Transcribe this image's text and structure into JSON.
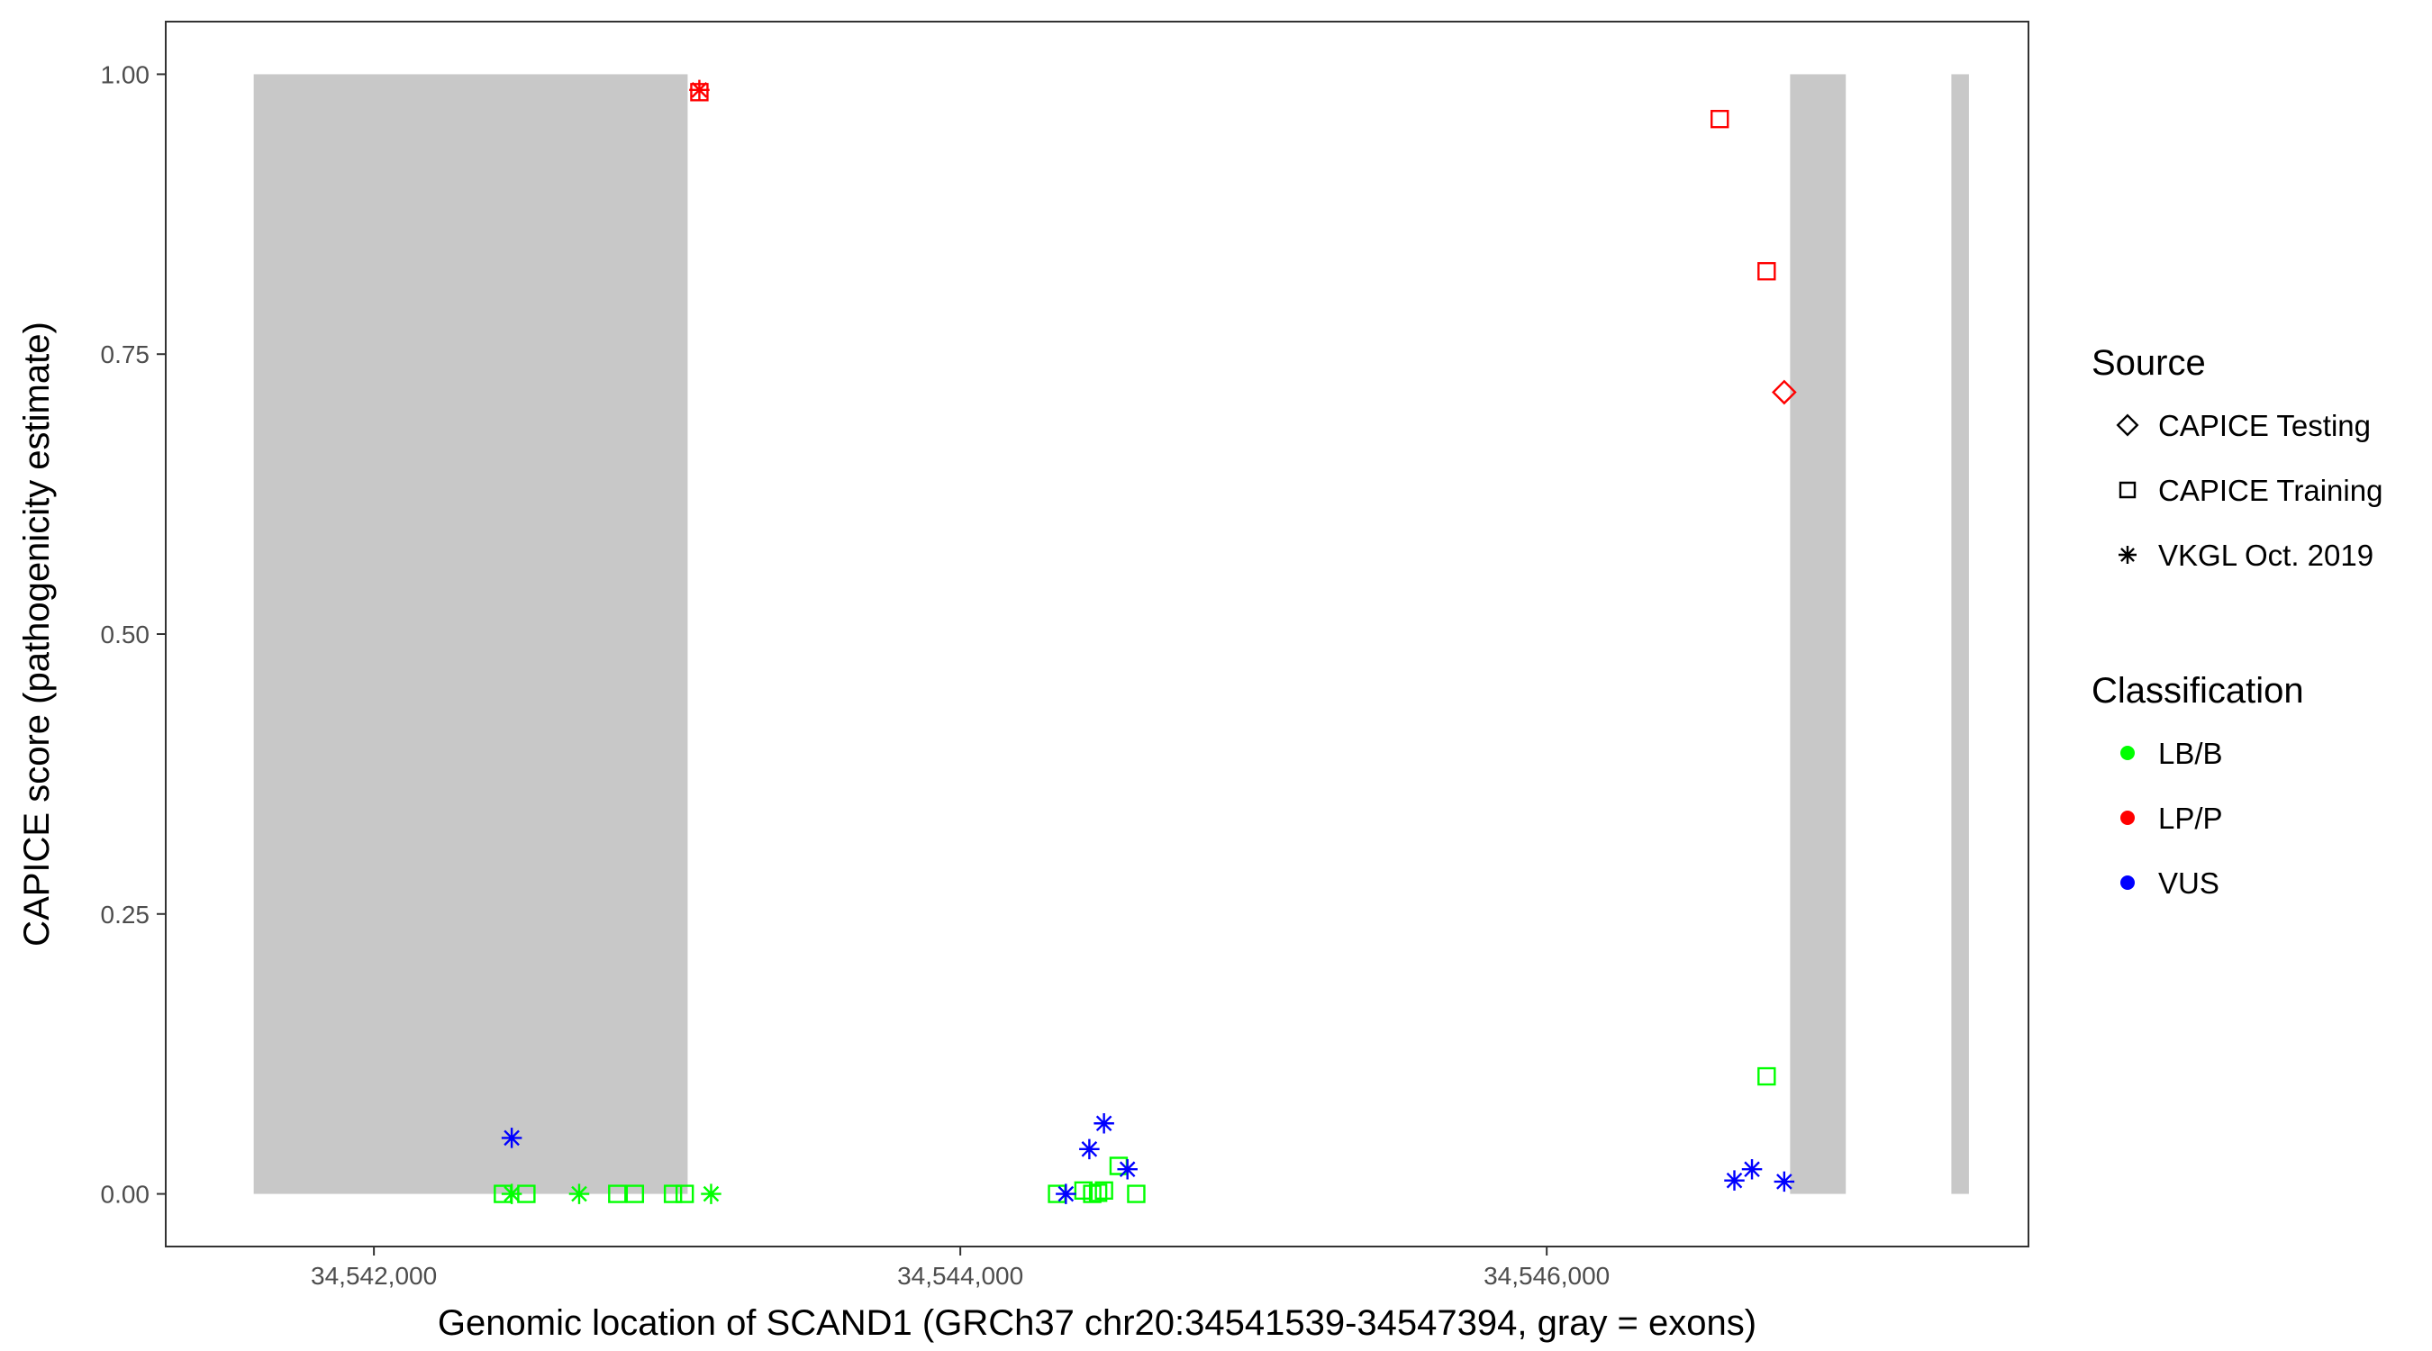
{
  "chart_data": {
    "type": "scatter",
    "title": "",
    "xlabel": "Genomic location of SCAND1 (GRCh37 chr20:34541539-34547394, gray = exons)",
    "ylabel": "CAPICE score (pathogenicity estimate)",
    "xlim": [
      34541290,
      34547643
    ],
    "ylim": [
      -0.047,
      1.047
    ],
    "x_ticks": [
      34542000,
      34544000,
      34546000
    ],
    "x_tick_labels": [
      "34,542,000",
      "34,544,000",
      "34,546,000"
    ],
    "y_ticks": [
      0,
      0.25,
      0.5,
      0.75,
      1.0
    ],
    "y_tick_labels": [
      "0.00",
      "0.25",
      "0.50",
      "0.75",
      "1.00"
    ],
    "grid": false,
    "exons": [
      {
        "start": 34541590,
        "end": 34543070
      },
      {
        "start": 34546830,
        "end": 34547020
      },
      {
        "start": 34547380,
        "end": 34547440
      }
    ],
    "exon_color": "#c8c8c8",
    "legend_position": "right",
    "source_legend": {
      "title": "Source",
      "items": [
        {
          "label": "CAPICE Testing",
          "shape": "diamond"
        },
        {
          "label": "CAPICE Training",
          "shape": "square"
        },
        {
          "label": "VKGL Oct. 2019",
          "shape": "asterisk"
        }
      ]
    },
    "classification_legend": {
      "title": "Classification",
      "items": [
        {
          "label": "LB/B",
          "color": "#00ff00"
        },
        {
          "label": "LP/P",
          "color": "#ff0000"
        },
        {
          "label": "VUS",
          "color": "#0000ff"
        }
      ]
    },
    "series": [
      {
        "source": "CAPICE Testing",
        "points": [
          {
            "x": 34546810,
            "y": 0.716,
            "class": "LP/P"
          }
        ]
      },
      {
        "source": "CAPICE Training",
        "points": [
          {
            "x": 34543110,
            "y": 0.984,
            "class": "LP/P"
          },
          {
            "x": 34546590,
            "y": 0.96,
            "class": "LP/P"
          },
          {
            "x": 34546750,
            "y": 0.824,
            "class": "LP/P"
          },
          {
            "x": 34546750,
            "y": 0.105,
            "class": "LB/B"
          },
          {
            "x": 34542440,
            "y": 0.0,
            "class": "LB/B"
          },
          {
            "x": 34542520,
            "y": 0.0,
            "class": "LB/B"
          },
          {
            "x": 34542830,
            "y": 0.0,
            "class": "LB/B"
          },
          {
            "x": 34542890,
            "y": 0.0,
            "class": "LB/B"
          },
          {
            "x": 34543020,
            "y": 0.0,
            "class": "LB/B"
          },
          {
            "x": 34543060,
            "y": 0.0,
            "class": "LB/B"
          },
          {
            "x": 34544330,
            "y": 0.0,
            "class": "LB/B"
          },
          {
            "x": 34544420,
            "y": 0.003,
            "class": "LB/B"
          },
          {
            "x": 34544450,
            "y": 0.0,
            "class": "LB/B"
          },
          {
            "x": 34544470,
            "y": 0.001,
            "class": "LB/B"
          },
          {
            "x": 34544490,
            "y": 0.003,
            "class": "LB/B"
          },
          {
            "x": 34544540,
            "y": 0.025,
            "class": "LB/B"
          },
          {
            "x": 34544600,
            "y": 0.0,
            "class": "LB/B"
          }
        ]
      },
      {
        "source": "VKGL Oct. 2019",
        "points": [
          {
            "x": 34543110,
            "y": 0.986,
            "class": "LP/P"
          },
          {
            "x": 34542470,
            "y": 0.05,
            "class": "VUS"
          },
          {
            "x": 34542470,
            "y": 0.0,
            "class": "LB/B"
          },
          {
            "x": 34542700,
            "y": 0.0,
            "class": "LB/B"
          },
          {
            "x": 34543150,
            "y": 0.0,
            "class": "LB/B"
          },
          {
            "x": 34544360,
            "y": 0.0,
            "class": "VUS"
          },
          {
            "x": 34544440,
            "y": 0.04,
            "class": "VUS"
          },
          {
            "x": 34544490,
            "y": 0.063,
            "class": "VUS"
          },
          {
            "x": 34544570,
            "y": 0.022,
            "class": "VUS"
          },
          {
            "x": 34546640,
            "y": 0.012,
            "class": "VUS"
          },
          {
            "x": 34546700,
            "y": 0.022,
            "class": "VUS"
          },
          {
            "x": 34546810,
            "y": 0.011,
            "class": "VUS"
          }
        ]
      }
    ]
  }
}
